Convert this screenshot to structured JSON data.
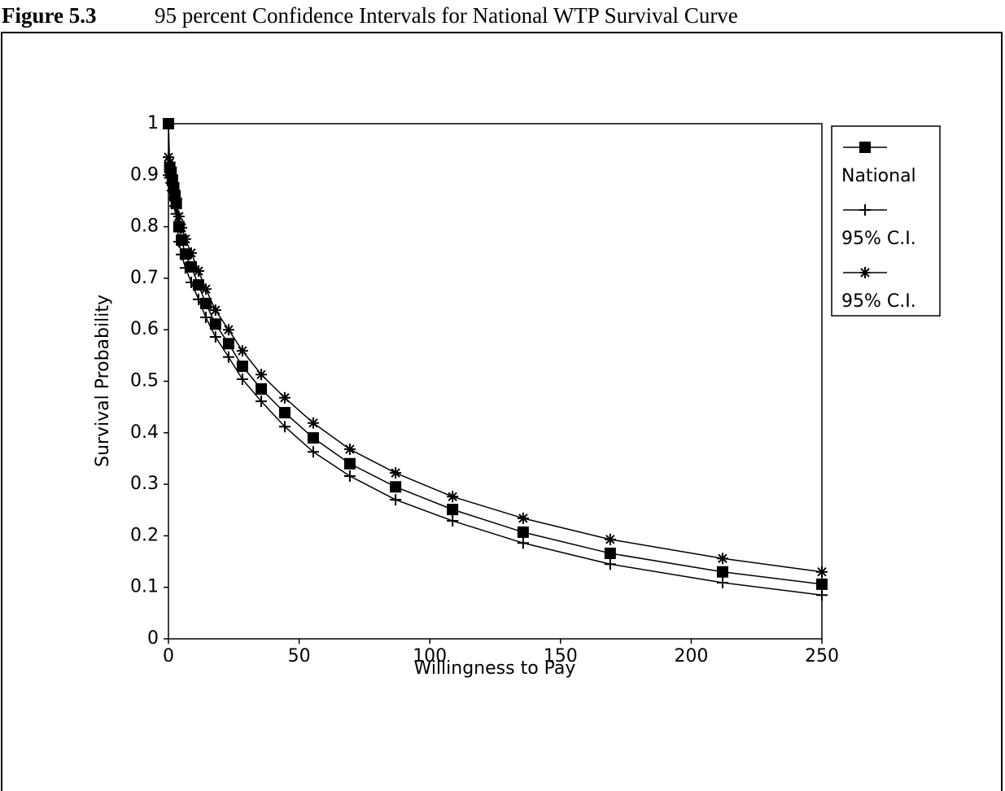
{
  "chart_data": {
    "type": "line",
    "figure_number": "Figure 5.3",
    "title": "95 percent Confidence Intervals for National WTP Survival Curve",
    "x_label": "Willingness to Pay",
    "y_label": "Survival Probability",
    "x": [
      0,
      0.5,
      1,
      1.5,
      2,
      2.5,
      3,
      4,
      5,
      6.5,
      8.7,
      11.5,
      14.3,
      18,
      23,
      28.3,
      35.5,
      44.5,
      55.4,
      69.4,
      86.9,
      108.7,
      135.7,
      169,
      212,
      250
    ],
    "series": [
      {
        "name": "National",
        "color": "#000000",
        "marker": "square",
        "values": [
          1,
          0.915,
          0.905,
          0.89,
          0.875,
          0.86,
          0.845,
          0.8,
          0.774,
          0.747,
          0.722,
          0.687,
          0.651,
          0.611,
          0.573,
          0.529,
          0.485,
          0.439,
          0.39,
          0.34,
          0.295,
          0.251,
          0.207,
          0.166,
          0.13,
          0.106
        ]
      },
      {
        "name": "95% C.I.",
        "color": "#000000",
        "marker": "plus",
        "values": [
          0.9,
          0.895,
          0.885,
          0.87,
          0.855,
          0.84,
          0.825,
          0.771,
          0.746,
          0.72,
          0.692,
          0.659,
          0.624,
          0.586,
          0.547,
          0.504,
          0.461,
          0.412,
          0.363,
          0.316,
          0.27,
          0.229,
          0.186,
          0.145,
          0.109,
          0.085
        ]
      },
      {
        "name": "95% C.I.",
        "color": "#000000",
        "marker": "star",
        "values": [
          0.935,
          0.925,
          0.915,
          0.9,
          0.885,
          0.87,
          0.855,
          0.82,
          0.798,
          0.776,
          0.749,
          0.714,
          0.679,
          0.638,
          0.6,
          0.559,
          0.513,
          0.468,
          0.419,
          0.368,
          0.322,
          0.276,
          0.234,
          0.193,
          0.156,
          0.13
        ]
      }
    ],
    "xlim": [
      0,
      250
    ],
    "xticks": [
      0,
      50,
      100,
      150,
      200,
      250
    ],
    "ylim": [
      0,
      1
    ],
    "yticks": [
      0,
      0.1,
      0.2,
      0.3,
      0.4,
      0.5,
      0.6,
      0.7,
      0.8,
      0.9,
      1
    ],
    "grid": false,
    "legend": "right"
  }
}
